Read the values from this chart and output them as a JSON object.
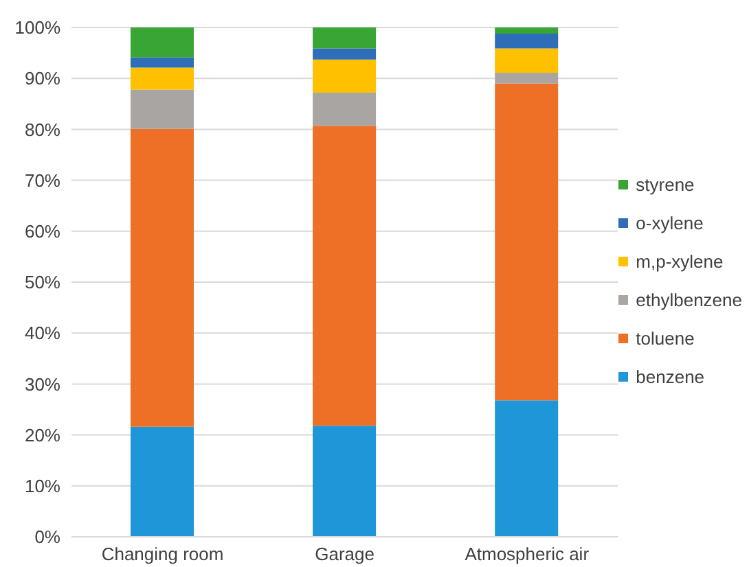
{
  "chart_data": {
    "type": "bar",
    "stacked": true,
    "categories": [
      "Changing room",
      "Garage",
      "Atmospheric air"
    ],
    "series": [
      {
        "name": "benzene",
        "color": "#1f96d8",
        "values": [
          21.6,
          21.8,
          26.8
        ]
      },
      {
        "name": "toluene",
        "color": "#ee7026",
        "values": [
          58.5,
          58.9,
          62.2
        ]
      },
      {
        "name": "ethylbenzene",
        "color": "#a8a5a3",
        "values": [
          7.7,
          6.5,
          2.1
        ]
      },
      {
        "name": "m,p-xylene",
        "color": "#ffc000",
        "values": [
          4.3,
          6.5,
          4.8
        ]
      },
      {
        "name": "o-xylene",
        "color": "#2e6db8",
        "values": [
          2.0,
          2.2,
          2.9
        ]
      },
      {
        "name": "styrene",
        "color": "#38a535",
        "values": [
          5.9,
          4.1,
          1.2
        ]
      }
    ],
    "ylim": [
      0,
      100
    ],
    "yticks": [
      {
        "value": 0,
        "label": "0%"
      },
      {
        "value": 10,
        "label": "10%"
      },
      {
        "value": 20,
        "label": "20%"
      },
      {
        "value": 30,
        "label": "30%"
      },
      {
        "value": 40,
        "label": "40%"
      },
      {
        "value": 50,
        "label": "50%"
      },
      {
        "value": 60,
        "label": "60%"
      },
      {
        "value": 70,
        "label": "70%"
      },
      {
        "value": 80,
        "label": "80%"
      },
      {
        "value": 90,
        "label": "90%"
      },
      {
        "value": 100,
        "label": "100%"
      }
    ],
    "grid": "y",
    "legend": "right"
  }
}
